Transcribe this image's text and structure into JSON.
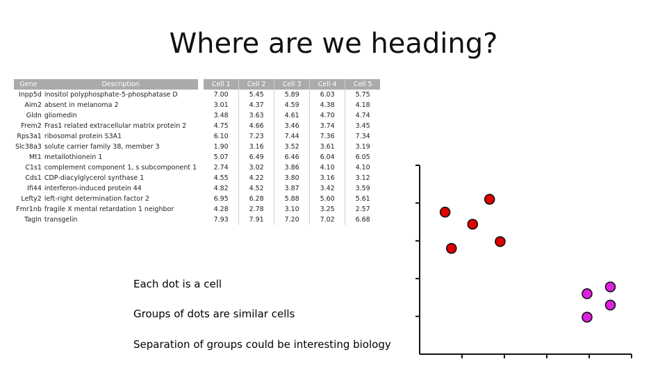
{
  "title": "Where are we heading?",
  "table": {
    "headers": [
      "Gene",
      "Description",
      "Cell 1",
      "Cell 2",
      "Cell 3",
      "Cell 4",
      "Cell 5"
    ],
    "rows": [
      [
        "Inpp5d",
        "inositol polyphosphate-5-phosphatase D",
        "7.00",
        "5.45",
        "5.89",
        "6.03",
        "5.75"
      ],
      [
        "Aim2",
        "absent in melanoma 2",
        "3.01",
        "4.37",
        "4.59",
        "4.38",
        "4.18"
      ],
      [
        "Gldn",
        "gliomedin",
        "3.48",
        "3.63",
        "4.61",
        "4.70",
        "4.74"
      ],
      [
        "Frem2",
        "Fras1 related extracellular matrix protein 2",
        "4.75",
        "4.66",
        "3.46",
        "3.74",
        "3.45"
      ],
      [
        "Rps3a1",
        "ribosomal protein S3A1",
        "6.10",
        "7.23",
        "7.44",
        "7.36",
        "7.34"
      ],
      [
        "Slc38a3",
        "solute carrier family 38, member 3",
        "1.90",
        "3.16",
        "3.52",
        "3.61",
        "3.19"
      ],
      [
        "Mt1",
        "metallothionein 1",
        "5.07",
        "6.49",
        "6.46",
        "6.04",
        "6.05"
      ],
      [
        "C1s1",
        "complement component 1, s subcomponent 1",
        "2.74",
        "3.02",
        "3.86",
        "4.10",
        "4.10"
      ],
      [
        "Cds1",
        "CDP-diacylglycerol synthase 1",
        "4.55",
        "4.22",
        "3.80",
        "3.16",
        "3.12"
      ],
      [
        "Ifi44",
        "interferon-induced protein 44",
        "4.82",
        "4.52",
        "3.87",
        "3.42",
        "3.59"
      ],
      [
        "Lefty2",
        "left-right determination factor 2",
        "6.95",
        "6.28",
        "5.88",
        "5.60",
        "5.61"
      ],
      [
        "Fmr1nb",
        "fragile X mental retardation 1 neighbor",
        "4.28",
        "2.78",
        "3.10",
        "3.25",
        "2.57"
      ],
      [
        "Tagln",
        "transgelin",
        "7.93",
        "7.91",
        "7.20",
        "7.02",
        "6.68"
      ]
    ]
  },
  "notes": [
    "Each dot is a cell",
    "Groups of dots are similar cells",
    "Separation of groups could be interesting biology"
  ],
  "chart_data": {
    "type": "scatter",
    "title": "",
    "xlabel": "",
    "ylabel": "",
    "xlim": [
      0,
      5
    ],
    "ylim": [
      0,
      5
    ],
    "grid": false,
    "series": [
      {
        "color": "#e00000",
        "points": [
          [
            0.6,
            3.76
          ],
          [
            1.25,
            3.44
          ],
          [
            1.65,
            4.1
          ],
          [
            0.75,
            2.8
          ],
          [
            1.9,
            2.98
          ]
        ]
      },
      {
        "color": "#e020e0",
        "points": [
          [
            3.95,
            1.6
          ],
          [
            4.5,
            1.78
          ],
          [
            3.95,
            0.98
          ],
          [
            4.5,
            1.3
          ]
        ]
      }
    ]
  }
}
